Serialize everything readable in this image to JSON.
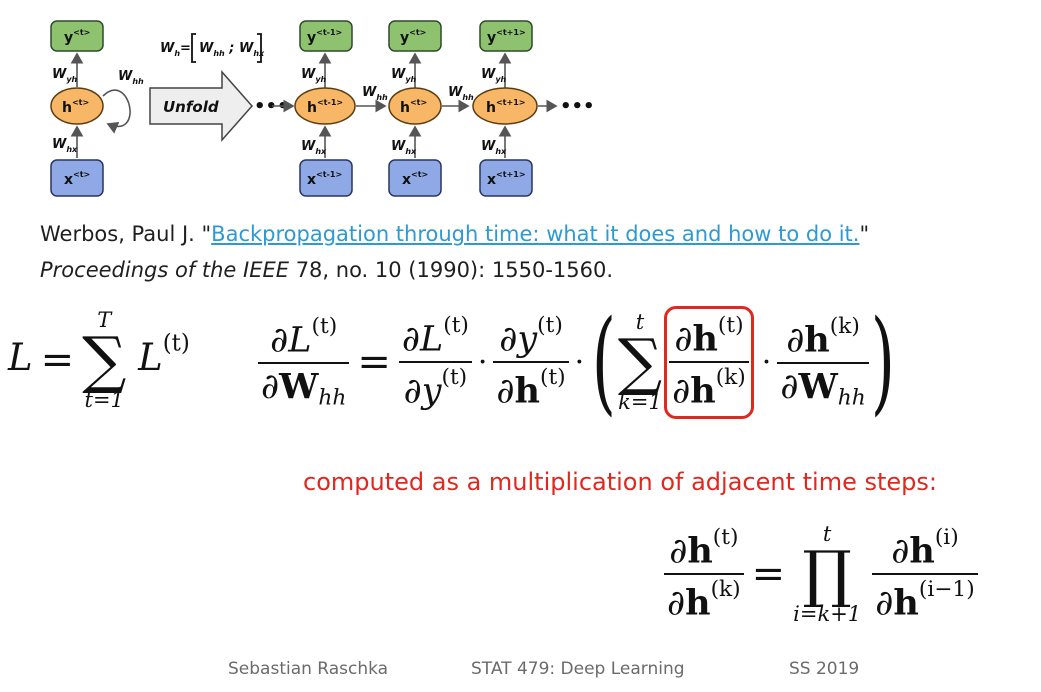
{
  "diagram": {
    "folded": {
      "y": "y",
      "y_sup": "<t>",
      "h": "h",
      "h_sup": "<t>",
      "x": "x",
      "x_sup": "<t>",
      "w_yh": "yh",
      "w_hh": "hh",
      "w_hx": "hx"
    },
    "definition": {
      "w": "W",
      "h_sub": "h",
      "hh": "hh",
      "hx": "hx"
    },
    "unfold_label": "Unfold",
    "dots": "•••",
    "steps": [
      {
        "y_sup": "<t-1>",
        "h_sup": "<t-1>",
        "x_sup": "<t-1>"
      },
      {
        "y_sup": "<t>",
        "h_sup": "<t>",
        "x_sup": "<t>"
      },
      {
        "y_sup": "<t+1>",
        "h_sup": "<t+1>",
        "x_sup": "<t+1>"
      }
    ],
    "w_letter": "W"
  },
  "citation": {
    "author": "Werbos, Paul J. \"",
    "title": "Backpropagation through time: what it does and how to do it.",
    "title_close": "\"",
    "journal": "Proceedings of the IEEE",
    "details": " 78, no. 10 (1990): 1550-1560."
  },
  "equations": {
    "sum_lhs": "L",
    "sum_upper": "T",
    "sum_lower": "t=1",
    "term_sup": "(t)",
    "k_upper": "t",
    "k_lower": "k=1",
    "sup_k": "(k)",
    "sub_hh": "hh",
    "prod_upper": "t",
    "prod_lower": "i=k+1",
    "sup_i": "(i)",
    "sup_i_minus": "(i−1)"
  },
  "note": "computed as a multiplication of adjacent time steps:",
  "footer": {
    "author": "Sebastian Raschka",
    "course": "STAT 479: Deep Learning",
    "term": "SS 2019"
  },
  "colors": {
    "y_node": "#8fc26e",
    "h_node": "#f7b766",
    "x_node": "#8fa8e6",
    "link": "#2b9ad6",
    "highlight": "#e0281e"
  }
}
